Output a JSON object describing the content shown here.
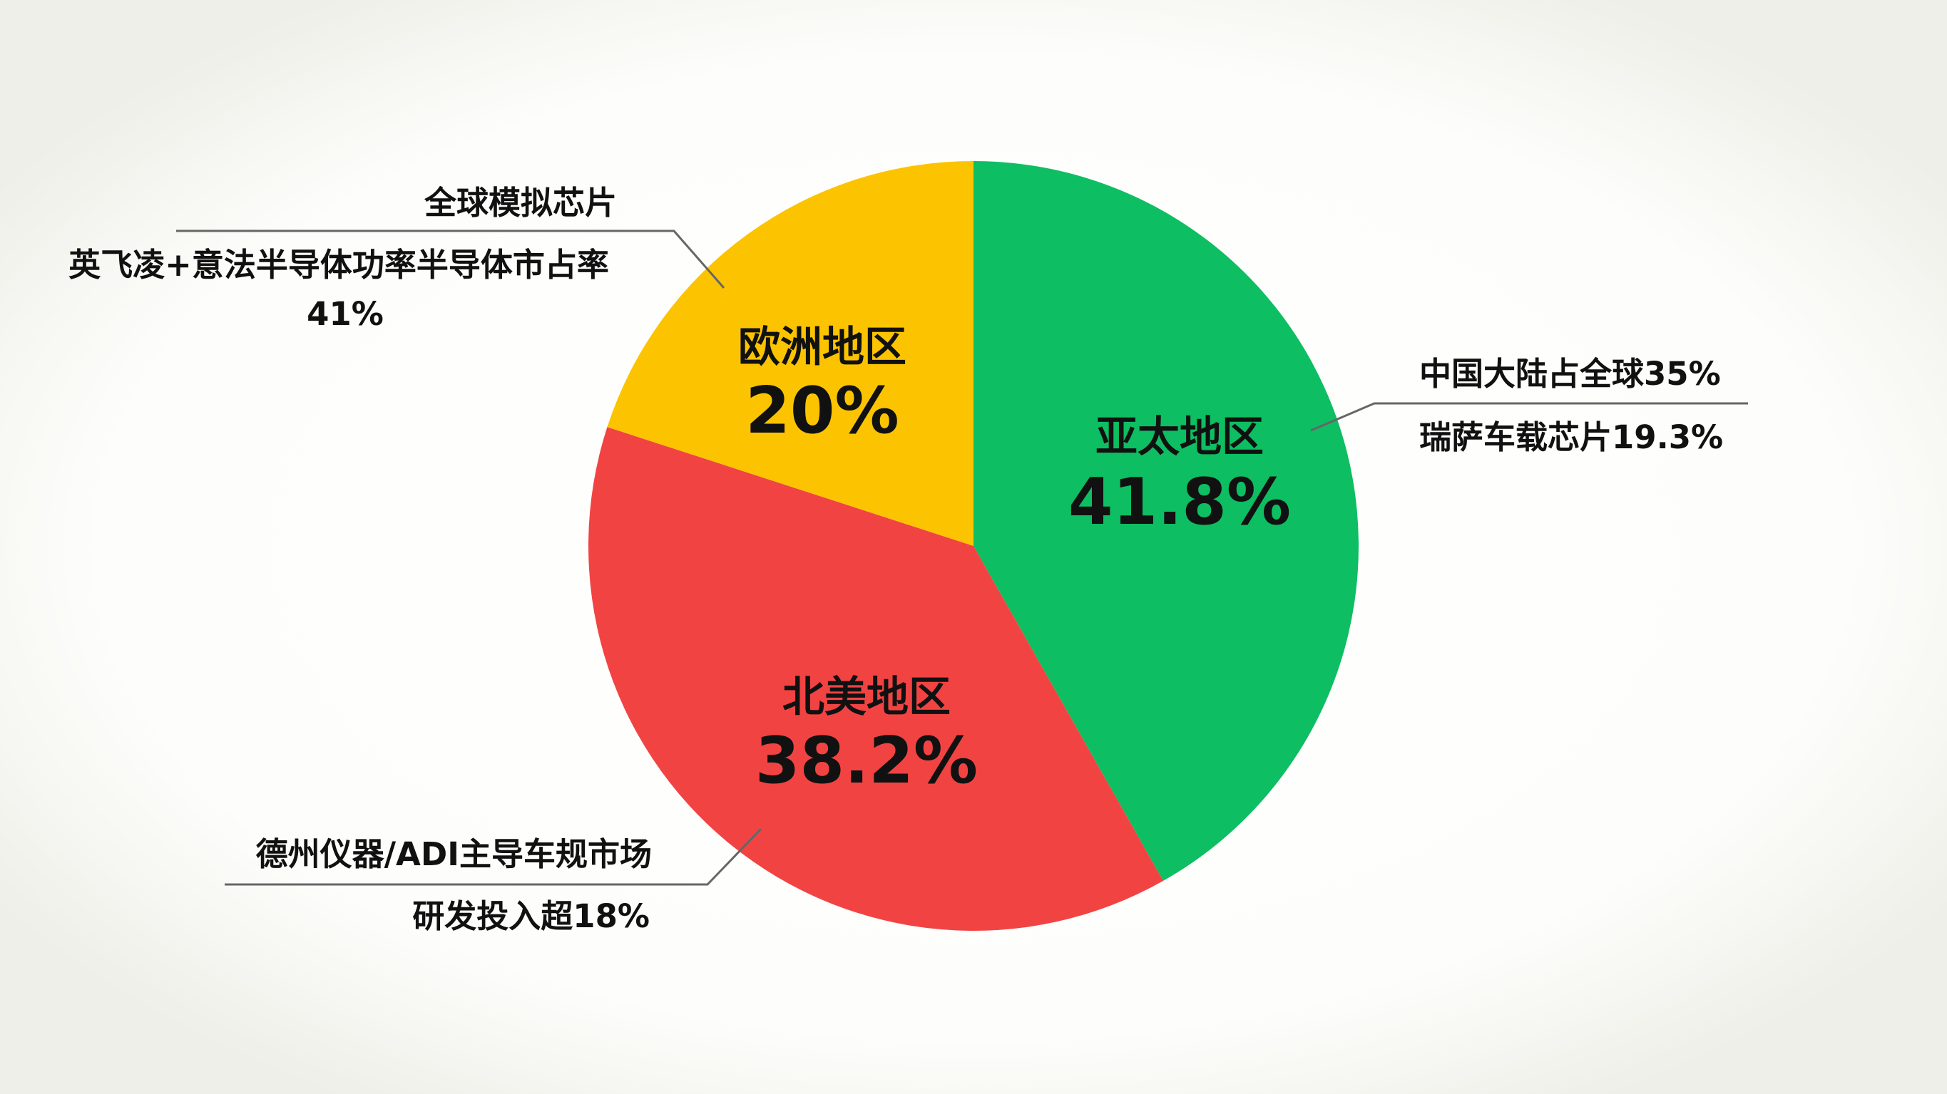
{
  "chart_data": {
    "type": "pie",
    "title": "",
    "start_angle_deg": 0,
    "direction": "clockwise",
    "slices": [
      {
        "label": "亚太地区",
        "value": 41.8,
        "value_label": "41.8%",
        "color": "#0dbe62"
      },
      {
        "label": "北美地区",
        "value": 38.2,
        "value_label": "38.2%",
        "color": "#f24343"
      },
      {
        "label": "欧洲地区",
        "value": 20,
        "value_label": "20%",
        "color": "#fcc400"
      }
    ],
    "annotations": [
      {
        "slice": "亚太地区",
        "lines": [
          "中国大陆占全球35%",
          "瑞萨车载芯片19.3%"
        ]
      },
      {
        "slice": "北美地区",
        "lines": [
          "德州仪器/ADI主导车规市场",
          "研发投入超18%"
        ]
      },
      {
        "slice": "欧洲地区",
        "lines": [
          "全球模拟芯片",
          "英飞凌+意法半导体功率半导体市占率",
          "41%"
        ]
      }
    ]
  }
}
